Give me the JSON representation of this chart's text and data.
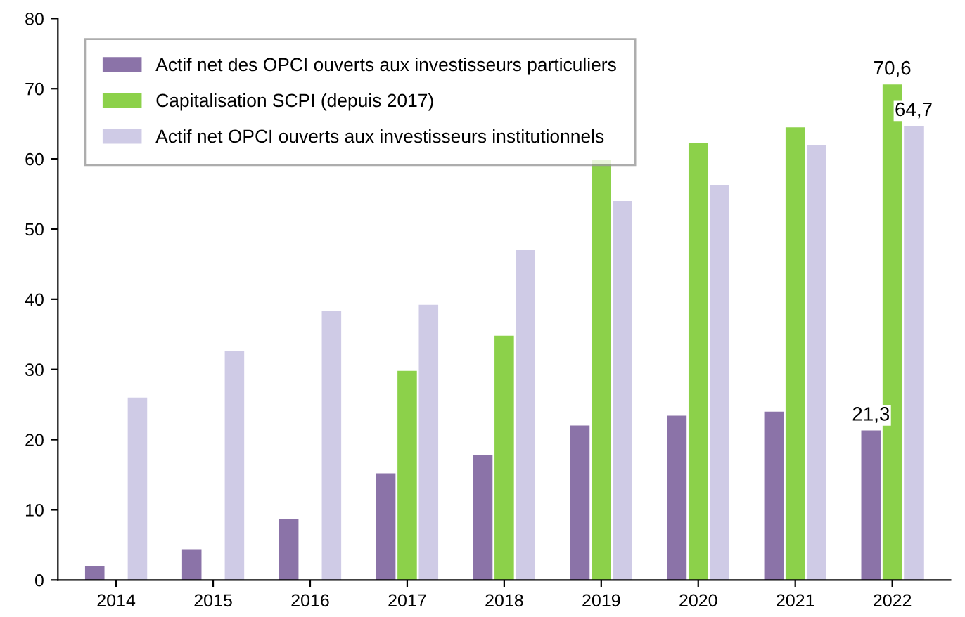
{
  "chart_data": {
    "type": "bar",
    "categories": [
      "2014",
      "2015",
      "2016",
      "2017",
      "2018",
      "2019",
      "2020",
      "2021",
      "2022"
    ],
    "series": [
      {
        "name": "Actif net des OPCI ouverts aux investisseurs particuliers",
        "color": "#8b73a8",
        "values": [
          2.0,
          4.4,
          8.7,
          15.2,
          17.8,
          22.0,
          23.4,
          24.0,
          21.3
        ],
        "value_labels": [
          null,
          null,
          null,
          null,
          null,
          null,
          null,
          null,
          "21,3"
        ]
      },
      {
        "name": "Capitalisation SCPI (depuis 2017)",
        "color": "#8cd14a",
        "values": [
          null,
          null,
          null,
          29.8,
          34.8,
          59.8,
          62.3,
          64.5,
          70.6
        ],
        "value_labels": [
          null,
          null,
          null,
          null,
          null,
          null,
          null,
          null,
          "70,6"
        ]
      },
      {
        "name": "Actif net OPCI ouverts aux investisseurs institutionnels",
        "color": "#cfcbe6",
        "values": [
          26.0,
          32.6,
          38.3,
          39.2,
          47.0,
          54.0,
          56.3,
          62.0,
          64.7
        ],
        "value_labels": [
          null,
          null,
          null,
          null,
          null,
          null,
          null,
          null,
          "64,7"
        ]
      }
    ],
    "ylim": [
      0,
      80
    ],
    "yticks": [
      0,
      10,
      20,
      30,
      40,
      50,
      60,
      70,
      80
    ],
    "grid": false,
    "legend": "top left"
  }
}
